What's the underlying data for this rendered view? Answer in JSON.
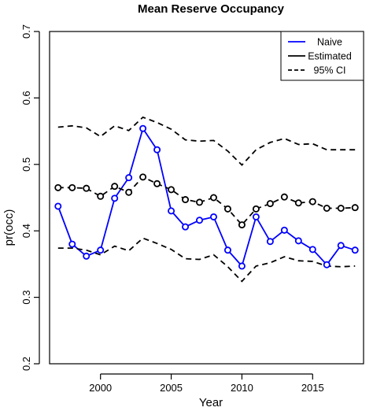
{
  "chart_data": {
    "type": "line",
    "title": "Mean Reserve Occupancy",
    "xlabel": "Year",
    "ylabel": "pr(occ)",
    "xlim": [
      1996.4,
      2018.6
    ],
    "ylim": [
      0.2,
      0.7
    ],
    "xticks": [
      2000,
      2005,
      2010,
      2015
    ],
    "yticks": [
      0.2,
      0.3,
      0.4,
      0.5,
      0.6,
      0.7
    ],
    "grid": false,
    "legend_position": "top-right",
    "x": [
      1997,
      1998,
      1999,
      2000,
      2001,
      2002,
      2003,
      2004,
      2005,
      2006,
      2007,
      2008,
      2009,
      2010,
      2011,
      2012,
      2013,
      2014,
      2015,
      2016,
      2017,
      2018
    ],
    "series": [
      {
        "name": "Naive",
        "color": "#0000ff",
        "marker_color": "#0000ff",
        "style": "solid",
        "markers": true,
        "values": [
          0.437,
          0.38,
          0.362,
          0.371,
          0.449,
          0.48,
          0.554,
          0.522,
          0.43,
          0.406,
          0.416,
          0.421,
          0.371,
          0.347,
          0.421,
          0.384,
          0.401,
          0.385,
          0.372,
          0.349,
          0.378,
          0.371
        ]
      },
      {
        "name": "Estimated",
        "color": "#000000",
        "marker_color": "#000000",
        "style": "dashed",
        "markers": true,
        "values": [
          0.465,
          0.465,
          0.464,
          0.452,
          0.467,
          0.458,
          0.481,
          0.471,
          0.462,
          0.447,
          0.443,
          0.45,
          0.433,
          0.409,
          0.433,
          0.441,
          0.451,
          0.442,
          0.444,
          0.434,
          0.434,
          0.435
        ]
      },
      {
        "name": "95% CI",
        "color": "#000000",
        "style": "dashed",
        "markers": false,
        "values": [
          0.556,
          0.558,
          0.555,
          0.542,
          0.558,
          0.551,
          0.571,
          0.563,
          0.553,
          0.537,
          0.535,
          0.536,
          0.52,
          0.499,
          0.522,
          0.533,
          0.539,
          0.53,
          0.531,
          0.522,
          0.522,
          0.522
        ]
      },
      {
        "name": "95% CI lower",
        "color": "#000000",
        "style": "dashed",
        "markers": false,
        "values": [
          0.374,
          0.374,
          0.371,
          0.364,
          0.377,
          0.37,
          0.389,
          0.381,
          0.372,
          0.358,
          0.357,
          0.364,
          0.346,
          0.324,
          0.347,
          0.352,
          0.361,
          0.355,
          0.354,
          0.347,
          0.346,
          0.347
        ]
      }
    ],
    "legend": [
      {
        "label": "Naive",
        "color": "#0000ff",
        "style": "solid"
      },
      {
        "label": "Estimated",
        "color": "#000000",
        "style": "solid"
      },
      {
        "label": "95% CI",
        "color": "#000000",
        "style": "dashed"
      }
    ]
  }
}
